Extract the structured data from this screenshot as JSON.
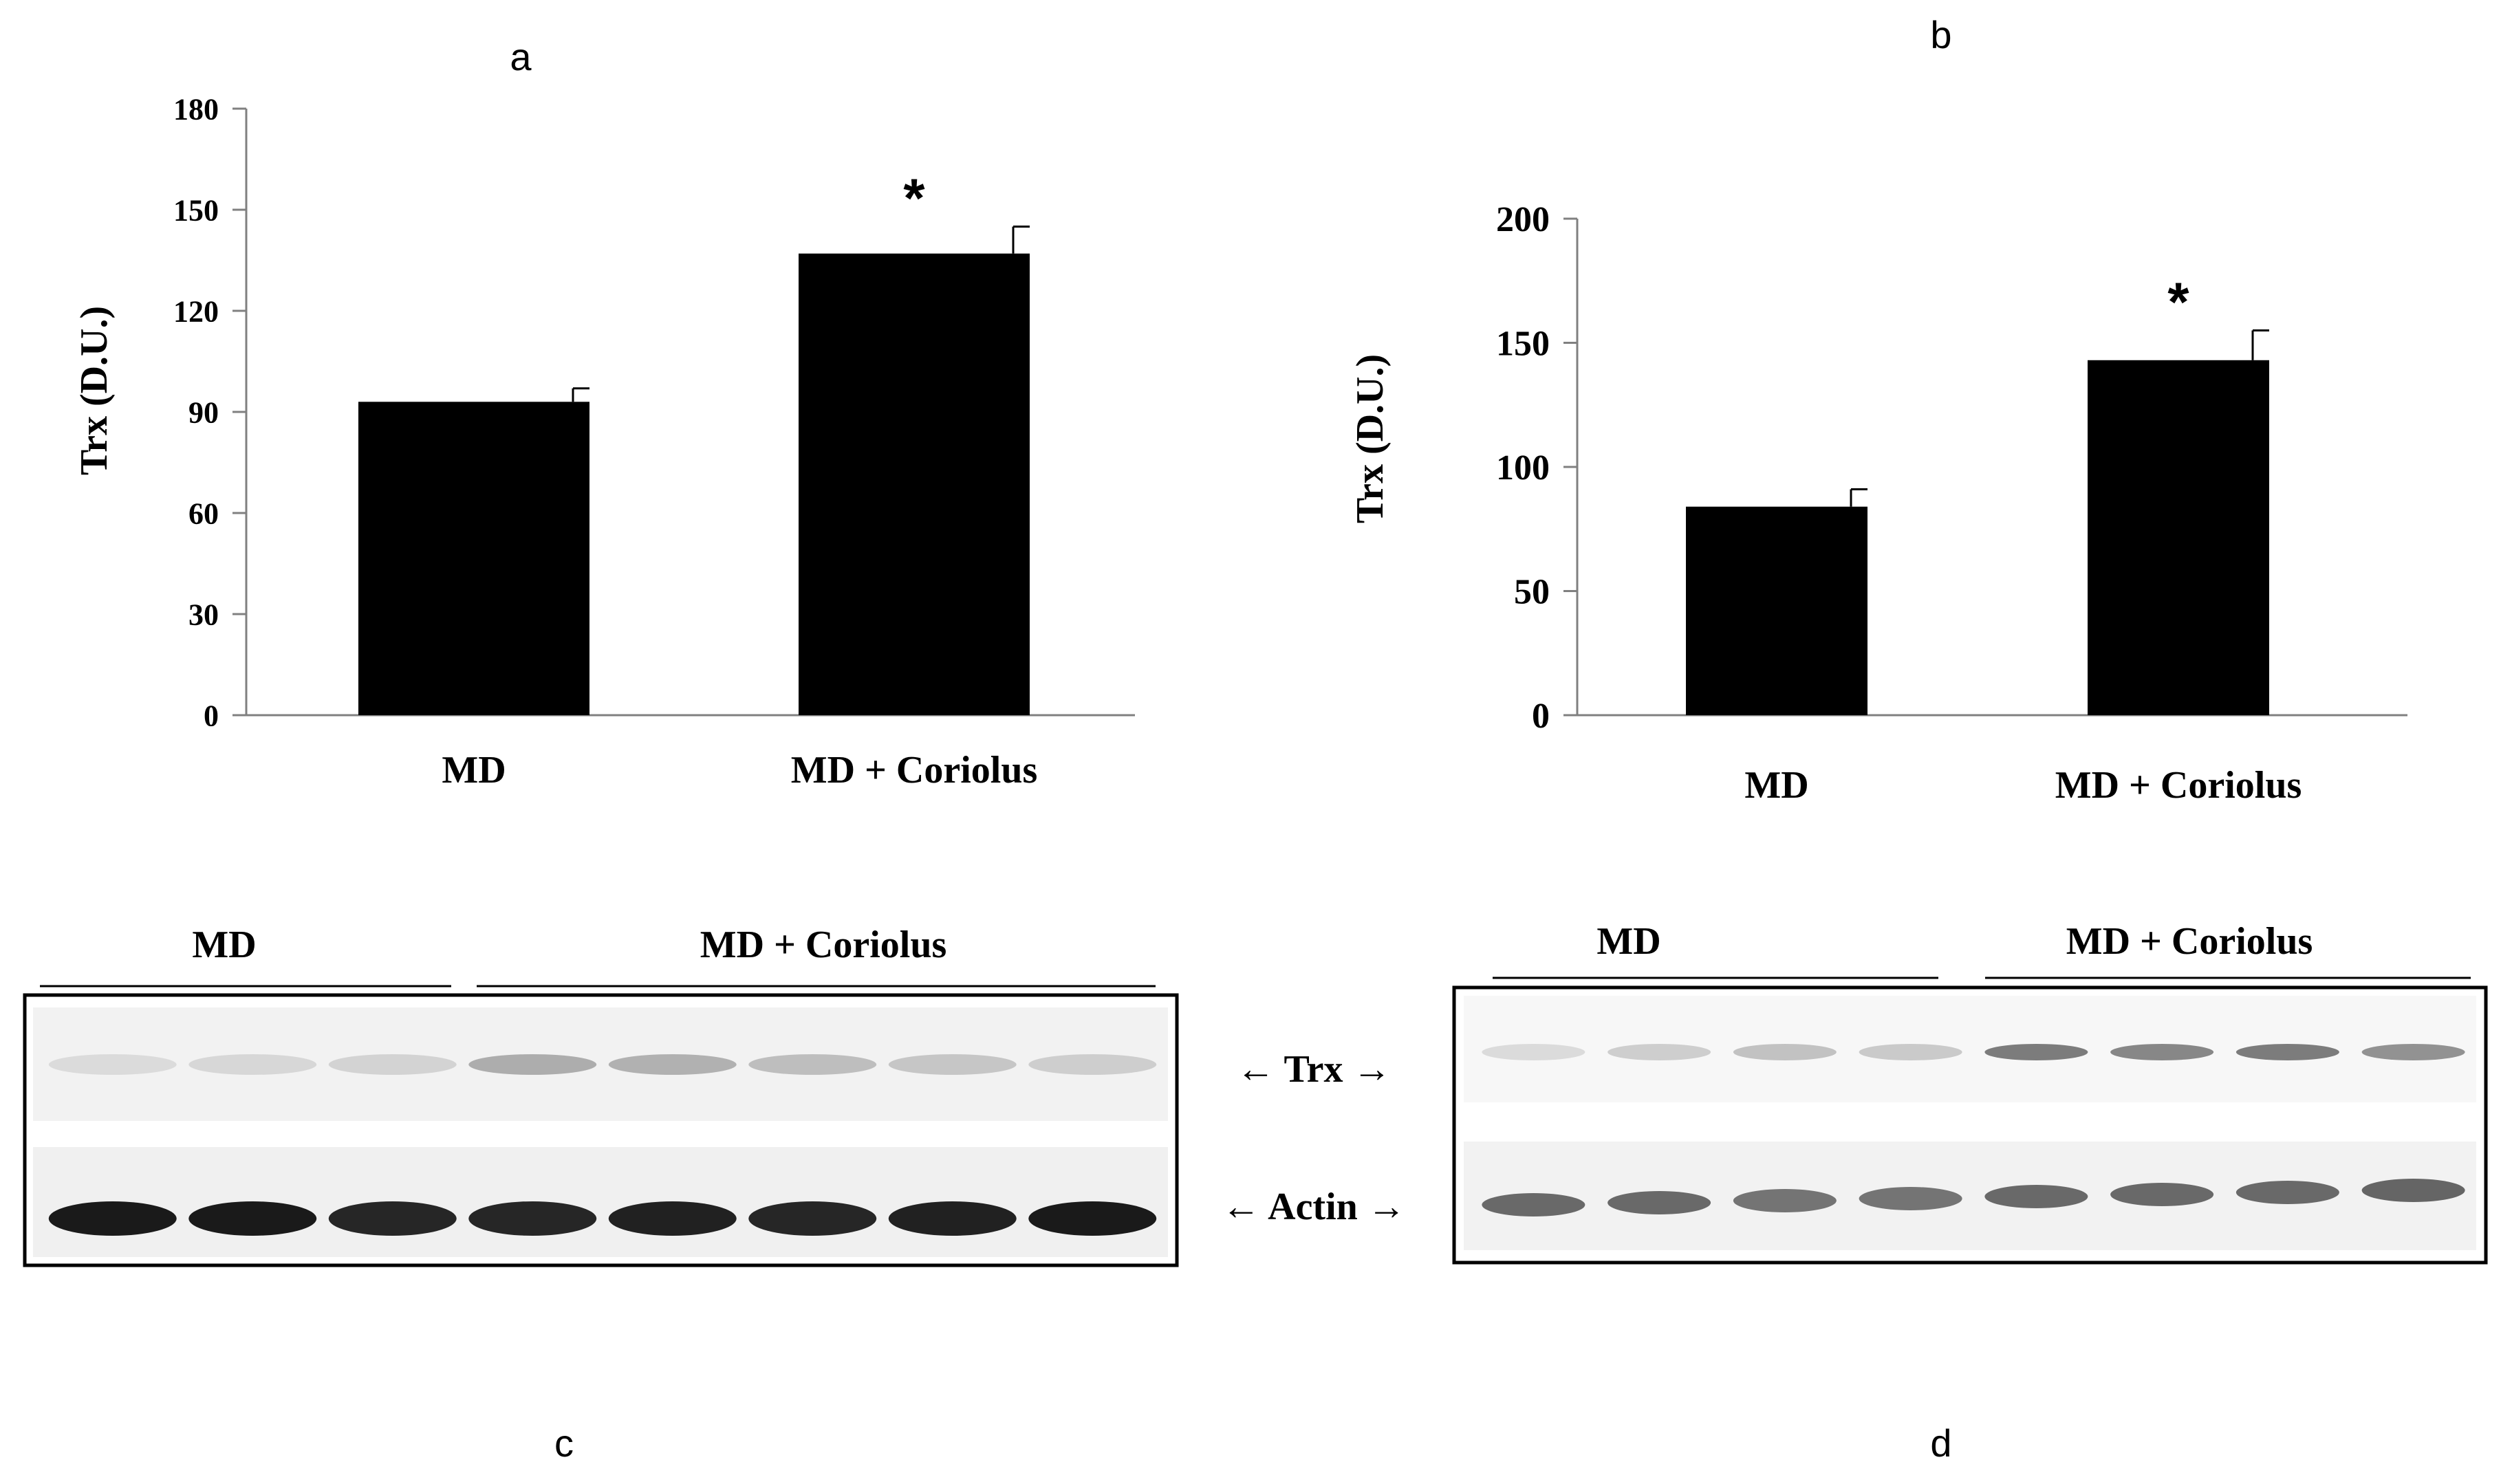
{
  "panel_letters": {
    "a": "a",
    "b": "b",
    "c": "c",
    "d": "d"
  },
  "colors": {
    "bar": "#000000",
    "axis": "#808080",
    "text": "#000000",
    "blot_bg": "#f2f2f2"
  },
  "chart_data": [
    {
      "panel": "a",
      "type": "bar",
      "categories": [
        "MD",
        "MD + Coriolus"
      ],
      "values": [
        93,
        137
      ],
      "error": [
        4,
        8
      ],
      "annotations": [
        "",
        "*"
      ],
      "ylabel": "Trx  (D.U.)",
      "ylim": [
        0,
        180
      ],
      "yticks": [
        0,
        30,
        60,
        90,
        120,
        150,
        180
      ],
      "grid": false
    },
    {
      "panel": "b",
      "type": "bar",
      "categories": [
        "MD",
        "MD + Coriolus"
      ],
      "values": [
        84,
        143
      ],
      "error": [
        7,
        12
      ],
      "annotations": [
        "",
        "*"
      ],
      "ylabel": "Trx  (D.U.)",
      "ylim": [
        0,
        200
      ],
      "yticks": [
        0,
        50,
        100,
        150,
        200
      ],
      "grid": false
    }
  ],
  "blots": [
    {
      "panel": "c",
      "group_labels": [
        "MD",
        "MD + Coriolus"
      ],
      "md_lanes": 3,
      "coriolus_lanes": 5,
      "trx_intensity": [
        0.1,
        0.12,
        0.14,
        0.32,
        0.3,
        0.24,
        0.2,
        0.16
      ],
      "actin_intensity": [
        0.95,
        0.95,
        0.9,
        0.9,
        0.92,
        0.9,
        0.92,
        0.95
      ],
      "band_labels": {
        "trx": "Trx",
        "actin": "Actin"
      }
    },
    {
      "panel": "d",
      "group_labels": [
        "MD",
        "MD + Coriolus"
      ],
      "md_lanes": 4,
      "coriolus_lanes": 4,
      "trx_intensity": [
        0.1,
        0.16,
        0.22,
        0.18,
        0.55,
        0.5,
        0.55,
        0.45
      ],
      "actin_intensity": [
        0.6,
        0.6,
        0.55,
        0.55,
        0.6,
        0.6,
        0.6,
        0.62
      ]
    }
  ]
}
